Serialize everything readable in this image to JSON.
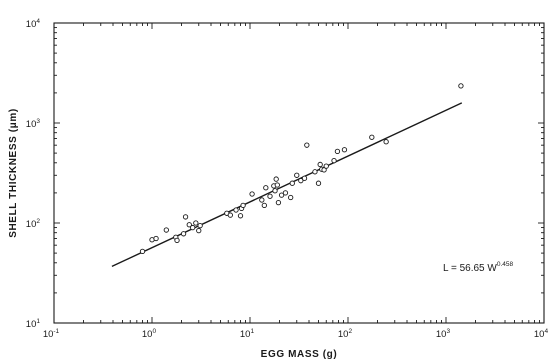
{
  "chart_data": {
    "type": "scatter",
    "xlabel": "EGG MASS (g)",
    "ylabel": "SHELL THICKNESS (μm)",
    "x_scale": "log",
    "y_scale": "log",
    "xlim": [
      0.1,
      10000
    ],
    "ylim": [
      10,
      10000
    ],
    "x_ticks": [
      {
        "base": "10",
        "exp": "-1",
        "value": 0.1
      },
      {
        "base": "10",
        "exp": "0",
        "value": 1
      },
      {
        "base": "10",
        "exp": "1",
        "value": 10
      },
      {
        "base": "10",
        "exp": "2",
        "value": 100
      },
      {
        "base": "10",
        "exp": "3",
        "value": 1000
      },
      {
        "base": "10",
        "exp": "4",
        "value": 10000
      }
    ],
    "y_ticks": [
      {
        "base": "10",
        "exp": "1",
        "value": 10
      },
      {
        "base": "10",
        "exp": "2",
        "value": 100
      },
      {
        "base": "10",
        "exp": "3",
        "value": 1000
      },
      {
        "base": "10",
        "exp": "4",
        "value": 10000
      }
    ],
    "grid": false,
    "annotation": {
      "base": "L = 56.65 W",
      "exp": "0.458"
    },
    "fit": {
      "coef": 56.65,
      "power": 0.458,
      "x_range": [
        0.39,
        1450
      ]
    },
    "points": [
      {
        "x": 0.8,
        "y": 52
      },
      {
        "x": 1.0,
        "y": 68
      },
      {
        "x": 1.1,
        "y": 70
      },
      {
        "x": 1.4,
        "y": 85
      },
      {
        "x": 1.75,
        "y": 72
      },
      {
        "x": 1.8,
        "y": 67
      },
      {
        "x": 2.1,
        "y": 78
      },
      {
        "x": 2.2,
        "y": 115
      },
      {
        "x": 2.4,
        "y": 96
      },
      {
        "x": 2.6,
        "y": 90
      },
      {
        "x": 2.8,
        "y": 100
      },
      {
        "x": 3.0,
        "y": 84
      },
      {
        "x": 3.1,
        "y": 94
      },
      {
        "x": 5.8,
        "y": 125
      },
      {
        "x": 6.3,
        "y": 120
      },
      {
        "x": 7.2,
        "y": 135
      },
      {
        "x": 8.0,
        "y": 118
      },
      {
        "x": 8.2,
        "y": 140
      },
      {
        "x": 8.5,
        "y": 150
      },
      {
        "x": 10.5,
        "y": 195
      },
      {
        "x": 13.2,
        "y": 170
      },
      {
        "x": 14.0,
        "y": 150
      },
      {
        "x": 14.5,
        "y": 225
      },
      {
        "x": 16.0,
        "y": 185
      },
      {
        "x": 17.5,
        "y": 235
      },
      {
        "x": 18.0,
        "y": 210
      },
      {
        "x": 18.5,
        "y": 275
      },
      {
        "x": 19.0,
        "y": 240
      },
      {
        "x": 19.5,
        "y": 160
      },
      {
        "x": 21.0,
        "y": 190
      },
      {
        "x": 23.0,
        "y": 200
      },
      {
        "x": 26.0,
        "y": 180
      },
      {
        "x": 27.0,
        "y": 250
      },
      {
        "x": 30.0,
        "y": 300
      },
      {
        "x": 33.0,
        "y": 265
      },
      {
        "x": 36.0,
        "y": 280
      },
      {
        "x": 38.0,
        "y": 600
      },
      {
        "x": 46.0,
        "y": 325
      },
      {
        "x": 50.0,
        "y": 250
      },
      {
        "x": 52.0,
        "y": 385
      },
      {
        "x": 54.0,
        "y": 345
      },
      {
        "x": 57.0,
        "y": 340
      },
      {
        "x": 60.0,
        "y": 370
      },
      {
        "x": 72.0,
        "y": 420
      },
      {
        "x": 78.0,
        "y": 520
      },
      {
        "x": 92.0,
        "y": 540
      },
      {
        "x": 175.0,
        "y": 720
      },
      {
        "x": 245.0,
        "y": 650
      },
      {
        "x": 1420.0,
        "y": 2350
      }
    ]
  }
}
